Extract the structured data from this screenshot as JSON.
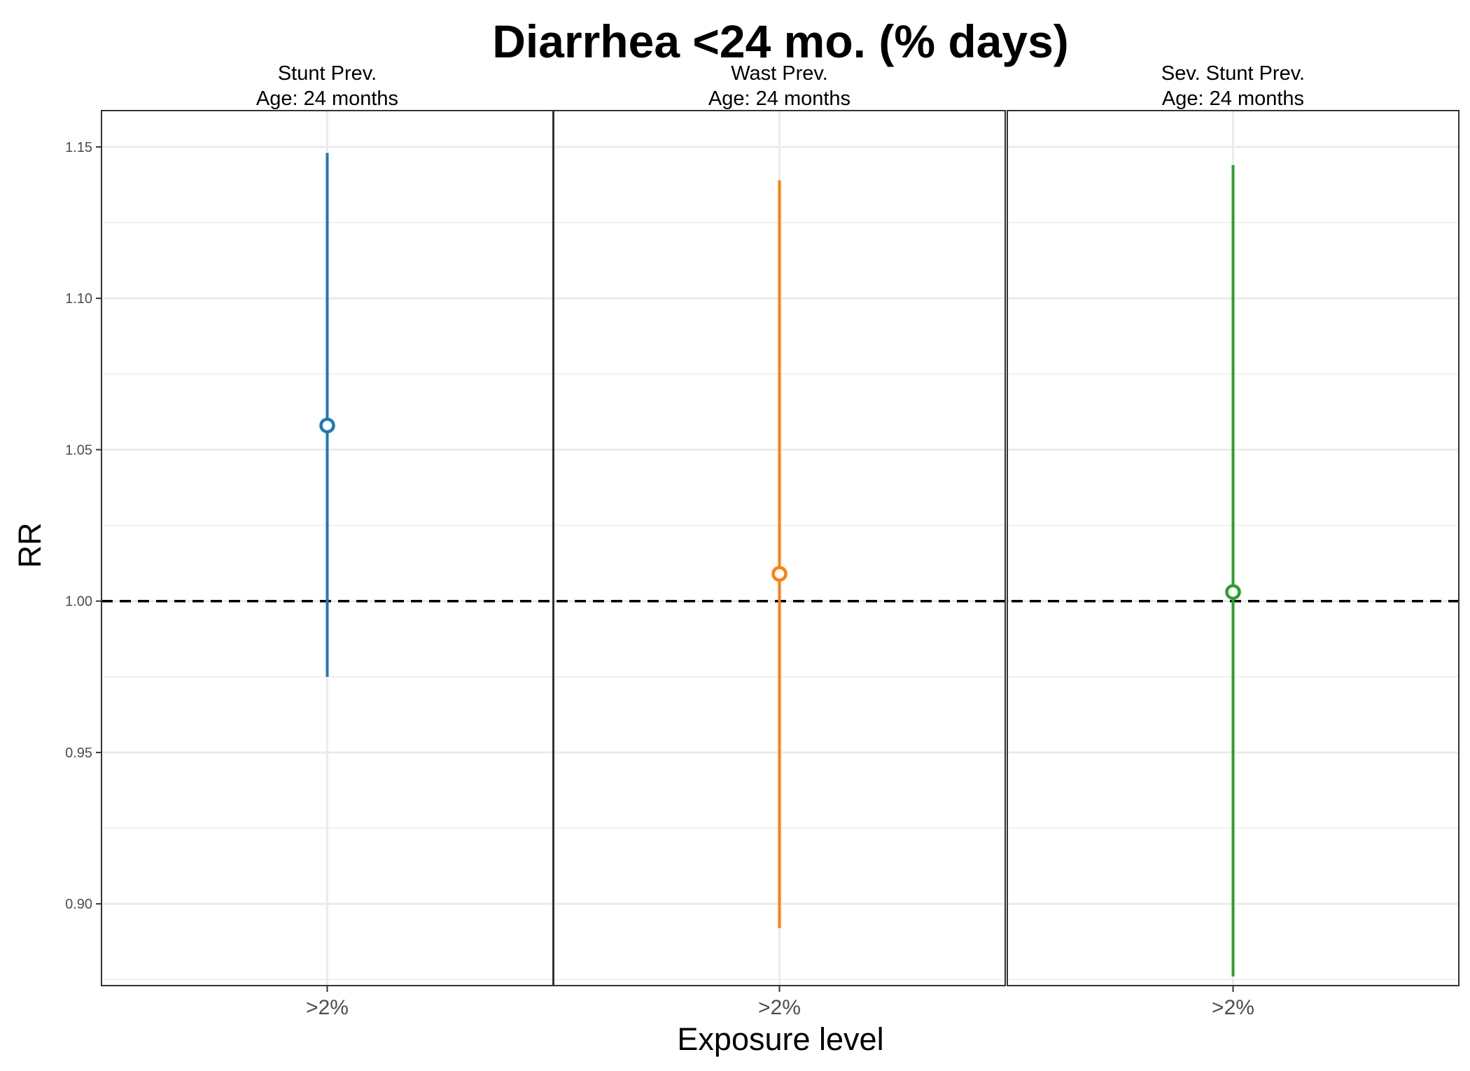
{
  "chart_data": {
    "type": "scatter",
    "title": "Diarrhea <24 mo.  (% days)",
    "xlabel": "Exposure level",
    "ylabel": "RR",
    "ylim": [
      0.873,
      1.162
    ],
    "yticks": [
      "0.90",
      "0.95",
      "1.00",
      "1.05",
      "1.10",
      "1.15"
    ],
    "reference_line": 1.0,
    "grid": true,
    "panels": [
      {
        "strip": [
          "Stunt Prev.",
          "Age: 24 months"
        ],
        "category": ">2%",
        "estimate": 1.058,
        "lower": 0.975,
        "upper": 1.148,
        "color": "#1f77b4"
      },
      {
        "strip": [
          "Wast Prev.",
          "Age: 24 months"
        ],
        "category": ">2%",
        "estimate": 1.009,
        "lower": 0.892,
        "upper": 1.139,
        "color": "#ff7f0e"
      },
      {
        "strip": [
          "Sev. Stunt Prev.",
          "Age: 24 months"
        ],
        "category": ">2%",
        "estimate": 1.003,
        "lower": 0.876,
        "upper": 1.144,
        "color": "#2ca02c"
      }
    ]
  }
}
